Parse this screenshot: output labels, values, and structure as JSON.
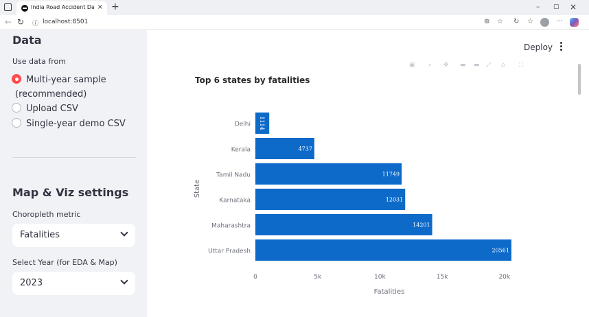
{
  "browser": {
    "tab_title": "India Road Accident Dashboard",
    "tab_close": "×",
    "new_tab": "+",
    "url": "localhost:8501",
    "window_min": "–",
    "window_max": "▢",
    "window_close": "×"
  },
  "sidebar": {
    "data_heading": "Data",
    "use_data_from_label": "Use data from",
    "radio_options": [
      {
        "label": "Multi-year sample",
        "label_line2": "(recommended)",
        "selected": true
      },
      {
        "label": "Upload CSV",
        "selected": false
      },
      {
        "label": "Single-year demo CSV",
        "selected": false
      }
    ],
    "viz_heading": "Map & Viz settings",
    "metric_label": "Choropleth metric",
    "metric_value": "Fatalities",
    "year_label": "Select Year (for EDA & Map)",
    "year_value": "2023"
  },
  "header": {
    "deploy_label": "Deploy"
  },
  "chart_data": {
    "type": "bar",
    "orientation": "horizontal",
    "title": "Top 6 states by fatalities",
    "xlabel": "Fatalities",
    "ylabel": "State",
    "categories": [
      "Delhi",
      "Kerala",
      "Tamil Nadu",
      "Karnataka",
      "Maharashtra",
      "Uttar Pradesh"
    ],
    "values": [
      1114,
      4737,
      11749,
      12031,
      14201,
      20561
    ],
    "data_labels": [
      "1114",
      "4737",
      "11749",
      "12031",
      "14201",
      "20561"
    ],
    "xticks": [
      0,
      5000,
      10000,
      15000,
      20000
    ],
    "xtick_labels": [
      "0",
      "5k",
      "10k",
      "15k",
      "20k"
    ],
    "xlim": [
      0,
      21500
    ],
    "bar_color": "#0d6ac9",
    "grid": false
  }
}
